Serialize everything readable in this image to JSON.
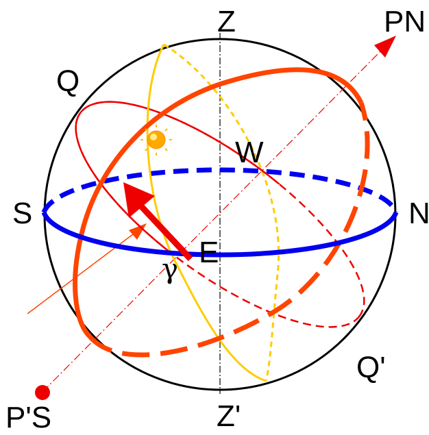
{
  "labels": {
    "zenith": "Z",
    "nadir": "Z'",
    "north_pole": "PN",
    "south_pole": "P'S",
    "north": "N",
    "south": "S",
    "east": "E",
    "west": "W",
    "equator_top": "Q",
    "equator_bottom": "Q'",
    "vernal_point": "γ"
  },
  "colors": {
    "sphere": "#000000",
    "horizon": "#0000ee",
    "equator": "#ee0000",
    "ecliptic": "#ff4400",
    "meridian": "#ffcc00",
    "axis": "#ee0000",
    "sun": "#ffaa00",
    "arrow": "#ee0000"
  },
  "icons": {
    "sun": "sun-icon",
    "south_pole_marker": "pole-dot-icon"
  }
}
